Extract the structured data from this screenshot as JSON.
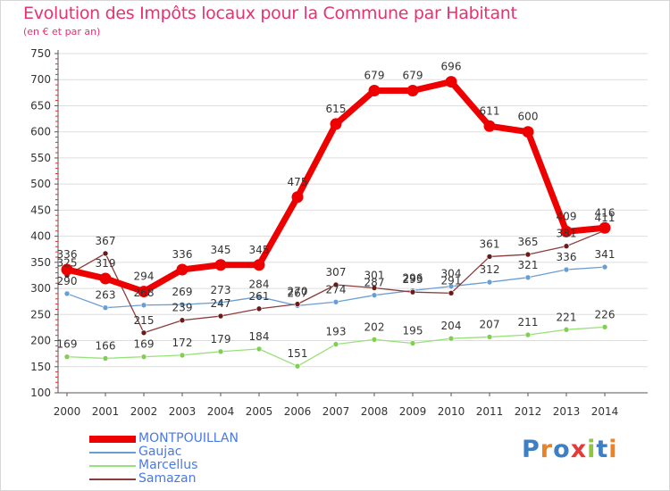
{
  "title": "Evolution des Impôts locaux pour la Commune par Habitant",
  "subtitle": "(en € et par an)",
  "logo": {
    "text": "Proxiti",
    "colors": [
      "#3e7fc4",
      "#e8832a",
      "#3e7fc4",
      "#e33b3b",
      "#8dc63f",
      "#3e7fc4",
      "#e8832a"
    ]
  },
  "colors": {
    "title": "#e8326e",
    "axis": "#555555",
    "grid": "#dddddd",
    "legend_text": "#4a78e6"
  },
  "chart_data": {
    "type": "line",
    "title": "Evolution des Impôts locaux pour la Commune par Habitant",
    "subtitle": "(en € et par an)",
    "xlabel": "",
    "ylabel": "",
    "ylim": [
      100,
      750
    ],
    "yticks": [
      100,
      150,
      200,
      250,
      300,
      350,
      400,
      450,
      500,
      550,
      600,
      650,
      700,
      750
    ],
    "grid": true,
    "legend_position": "bottom-left",
    "categories": [
      "2000",
      "2001",
      "2002",
      "2003",
      "2004",
      "2005",
      "2006",
      "2007",
      "2008",
      "2009",
      "2010",
      "2011",
      "2012",
      "2013",
      "2014"
    ],
    "series": [
      {
        "name": "MONTPOUILLAN",
        "color": "#ee0000",
        "marker_color": "#ee0000",
        "width": 7,
        "values": [
          336,
          319,
          294,
          336,
          345,
          345,
          475,
          615,
          679,
          679,
          696,
          611,
          600,
          409,
          416
        ]
      },
      {
        "name": "Gaujac",
        "color": "#6a9ed3",
        "marker_color": "#6a9ed3",
        "width": 1.3,
        "values": [
          290,
          263,
          268,
          269,
          273,
          284,
          267,
          274,
          287,
          296,
          304,
          312,
          321,
          336,
          341
        ]
      },
      {
        "name": "Marcellus",
        "color": "#99e07a",
        "marker_color": "#80d050",
        "width": 1.3,
        "values": [
          169,
          166,
          169,
          172,
          179,
          184,
          151,
          193,
          202,
          195,
          204,
          207,
          211,
          221,
          226
        ]
      },
      {
        "name": "Samazan",
        "color": "#8a3b3b",
        "marker_color": "#6a1a1a",
        "width": 1.3,
        "values": [
          325,
          367,
          215,
          239,
          247,
          261,
          270,
          307,
          301,
          293,
          291,
          361,
          365,
          381,
          411
        ]
      }
    ],
    "labels": [
      {
        "series": 0,
        "text": [
          "336",
          "319",
          "294",
          "336",
          "345",
          "345",
          "475",
          "615",
          "679",
          "679",
          "696",
          "611",
          "600",
          "409",
          "416"
        ]
      },
      {
        "series": 1,
        "text": [
          "290",
          "263",
          "268",
          "269",
          "273",
          "284",
          "267",
          "274",
          "287",
          "296",
          "304",
          "312",
          "321",
          "336",
          "341"
        ]
      },
      {
        "series": 2,
        "text": [
          "169",
          "166",
          "169",
          "172",
          "179",
          "184",
          "151",
          "193",
          "202",
          "195",
          "204",
          "207",
          "211",
          "221",
          "226"
        ]
      },
      {
        "series": 3,
        "text": [
          "325",
          "367",
          "215",
          "239",
          "247",
          "261",
          "270",
          "307",
          "301",
          "293",
          "291",
          "361",
          "365",
          "381",
          "411"
        ]
      }
    ]
  }
}
